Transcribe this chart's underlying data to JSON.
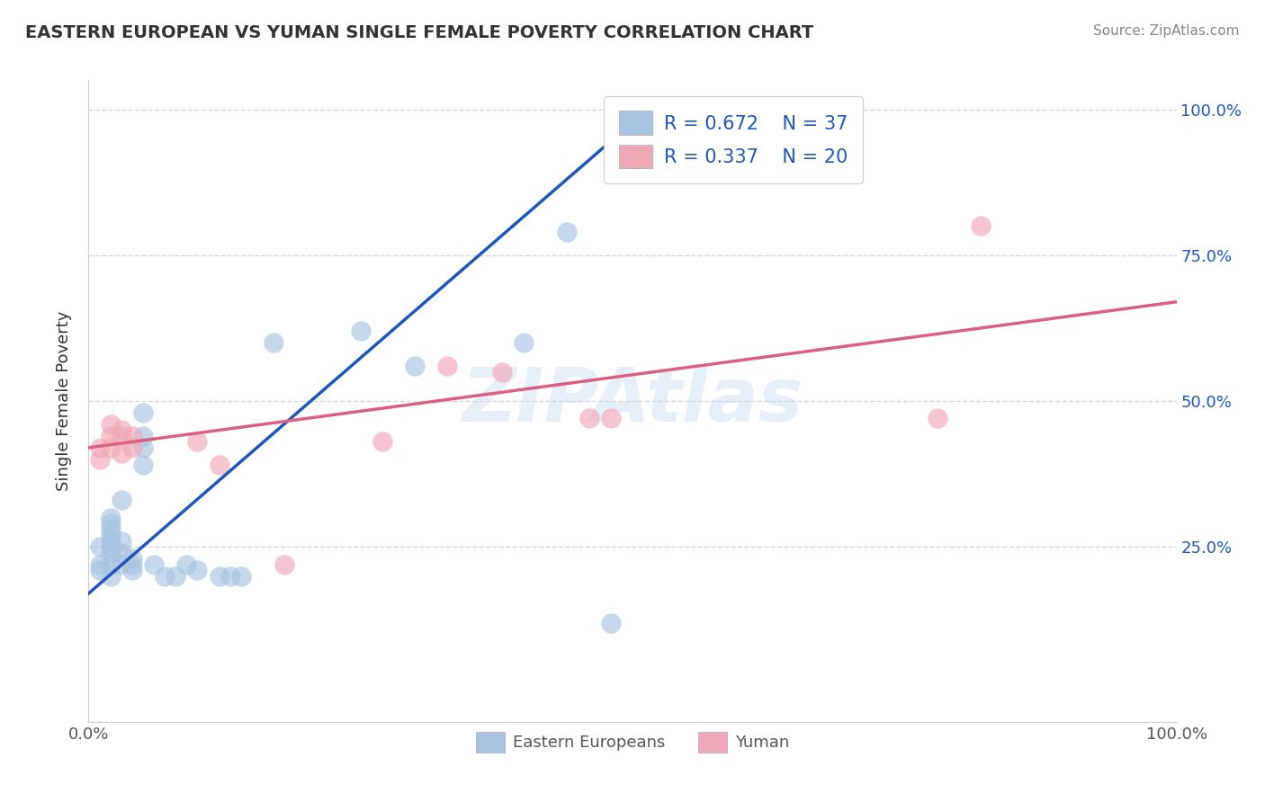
{
  "title": "EASTERN EUROPEAN VS YUMAN SINGLE FEMALE POVERTY CORRELATION CHART",
  "source": "Source: ZipAtlas.com",
  "ylabel": "Single Female Poverty",
  "xlim": [
    0.0,
    1.0
  ],
  "ylim": [
    -0.05,
    1.05
  ],
  "yticks": [
    0.25,
    0.5,
    0.75,
    1.0
  ],
  "ytick_labels": [
    "25.0%",
    "50.0%",
    "75.0%",
    "100.0%"
  ],
  "legend_R1": "R = 0.672",
  "legend_N1": "N = 37",
  "legend_R2": "R = 0.337",
  "legend_N2": "N = 20",
  "color_blue": "#a8c4e0",
  "color_pink": "#f0a8b8",
  "line_blue": "#2255bb",
  "line_pink": "#d96080",
  "background_color": "#ffffff",
  "eastern_european_points": [
    [
      0.01,
      0.21
    ],
    [
      0.01,
      0.22
    ],
    [
      0.01,
      0.25
    ],
    [
      0.02,
      0.2
    ],
    [
      0.02,
      0.22
    ],
    [
      0.02,
      0.24
    ],
    [
      0.02,
      0.25
    ],
    [
      0.02,
      0.26
    ],
    [
      0.02,
      0.27
    ],
    [
      0.02,
      0.28
    ],
    [
      0.02,
      0.29
    ],
    [
      0.02,
      0.3
    ],
    [
      0.03,
      0.22
    ],
    [
      0.03,
      0.24
    ],
    [
      0.03,
      0.26
    ],
    [
      0.03,
      0.33
    ],
    [
      0.04,
      0.21
    ],
    [
      0.04,
      0.22
    ],
    [
      0.04,
      0.23
    ],
    [
      0.05,
      0.39
    ],
    [
      0.05,
      0.42
    ],
    [
      0.05,
      0.44
    ],
    [
      0.05,
      0.48
    ],
    [
      0.06,
      0.22
    ],
    [
      0.07,
      0.2
    ],
    [
      0.08,
      0.2
    ],
    [
      0.09,
      0.22
    ],
    [
      0.1,
      0.21
    ],
    [
      0.12,
      0.2
    ],
    [
      0.13,
      0.2
    ],
    [
      0.14,
      0.2
    ],
    [
      0.17,
      0.6
    ],
    [
      0.25,
      0.62
    ],
    [
      0.3,
      0.56
    ],
    [
      0.4,
      0.6
    ],
    [
      0.44,
      0.79
    ],
    [
      0.48,
      0.12
    ]
  ],
  "yuman_points": [
    [
      0.01,
      0.4
    ],
    [
      0.01,
      0.42
    ],
    [
      0.02,
      0.42
    ],
    [
      0.02,
      0.44
    ],
    [
      0.02,
      0.46
    ],
    [
      0.03,
      0.41
    ],
    [
      0.03,
      0.44
    ],
    [
      0.03,
      0.45
    ],
    [
      0.04,
      0.44
    ],
    [
      0.04,
      0.42
    ],
    [
      0.1,
      0.43
    ],
    [
      0.12,
      0.39
    ],
    [
      0.18,
      0.22
    ],
    [
      0.27,
      0.43
    ],
    [
      0.33,
      0.56
    ],
    [
      0.38,
      0.55
    ],
    [
      0.46,
      0.47
    ],
    [
      0.48,
      0.47
    ],
    [
      0.78,
      0.47
    ],
    [
      0.82,
      0.8
    ]
  ],
  "blue_line_x": [
    0.0,
    0.52
  ],
  "blue_line_y": [
    0.17,
    1.01
  ],
  "pink_line_x": [
    0.0,
    1.0
  ],
  "pink_line_y": [
    0.42,
    0.67
  ]
}
